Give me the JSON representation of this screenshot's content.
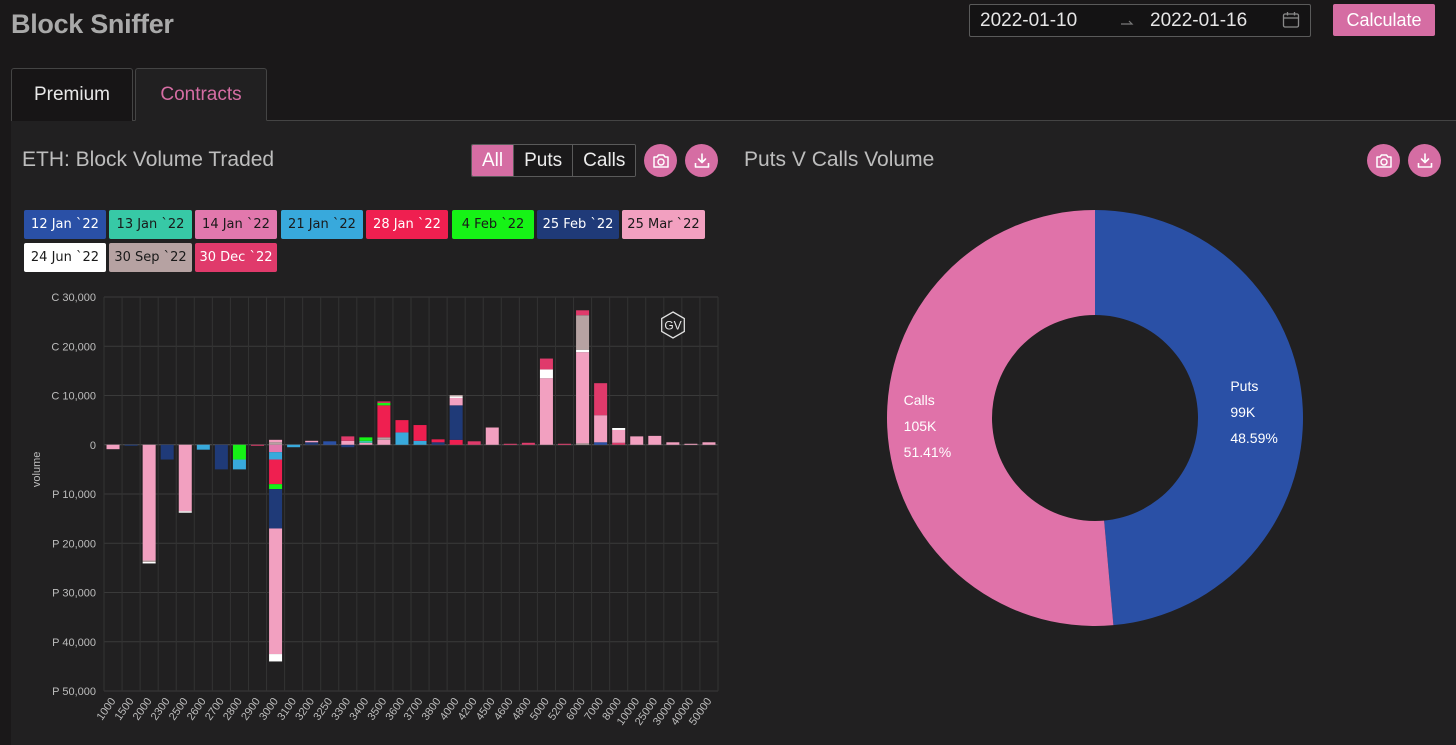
{
  "app": {
    "title": "Block Sniffer"
  },
  "header": {
    "date_start": "2022-01-10",
    "date_end": "2022-01-16",
    "calculate_label": "Calculate"
  },
  "tabs": [
    {
      "label": "Premium",
      "active": false
    },
    {
      "label": "Contracts",
      "active": true
    }
  ],
  "left_panel": {
    "title": "ETH: Block Volume Traded",
    "filters": [
      {
        "label": "All",
        "active": true
      },
      {
        "label": "Puts",
        "active": false
      },
      {
        "label": "Calls",
        "active": false
      }
    ],
    "icons": [
      "camera-icon",
      "download-icon"
    ],
    "watermark": "GV",
    "expiries": [
      {
        "label": "12 Jan `22",
        "color": "#2a50a6",
        "text": "#ffffff"
      },
      {
        "label": "13 Jan `22",
        "color": "#37c9a6",
        "text": "#1a1a1a"
      },
      {
        "label": "14 Jan `22",
        "color": "#e278ad",
        "text": "#1a1a1a"
      },
      {
        "label": "21 Jan `22",
        "color": "#38a9dc",
        "text": "#1a1a1a"
      },
      {
        "label": "28 Jan `22",
        "color": "#ef1f50",
        "text": "#ffffff"
      },
      {
        "label": "4 Feb `22",
        "color": "#16f316",
        "text": "#1a1a1a"
      },
      {
        "label": "25 Feb `22",
        "color": "#1f3a78",
        "text": "#ffffff"
      },
      {
        "label": "25 Mar `22",
        "color": "#f2a0c0",
        "text": "#1a1a1a"
      },
      {
        "label": "24 Jun `22",
        "color": "#ffffff",
        "text": "#1a1a1a"
      },
      {
        "label": "30 Sep `22",
        "color": "#b6a2a2",
        "text": "#1a1a1a"
      },
      {
        "label": "30 Dec `22",
        "color": "#e03a6b",
        "text": "#ffffff"
      }
    ]
  },
  "right_panel": {
    "title": "Puts V Calls Volume",
    "icons": [
      "camera-icon",
      "download-icon"
    ]
  },
  "chart_data": [
    {
      "type": "bar",
      "stacked": true,
      "ylabel": "volume",
      "ylim": [
        -50000,
        30000
      ],
      "y_ticks": [
        30000,
        20000,
        10000,
        0,
        -10000,
        -20000,
        -30000,
        -40000,
        -50000
      ],
      "y_tick_labels": [
        "C 30,000",
        "C 20,000",
        "C 10,000",
        "0",
        "P 10,000",
        "P 20,000",
        "P 30,000",
        "P 40,000",
        "P 50,000"
      ],
      "categories": [
        "1000",
        "1500",
        "2000",
        "2300",
        "2500",
        "2600",
        "2700",
        "2800",
        "2900",
        "3000",
        "3100",
        "3200",
        "3250",
        "3300",
        "3400",
        "3500",
        "3600",
        "3700",
        "3800",
        "4000",
        "4200",
        "4500",
        "4600",
        "4800",
        "5000",
        "5200",
        "6000",
        "7000",
        "8000",
        "10000",
        "25000",
        "30000",
        "40000",
        "50000"
      ],
      "series_colors": [
        "#2a50a6",
        "#37c9a6",
        "#e278ad",
        "#38a9dc",
        "#ef1f50",
        "#16f316",
        "#1f3a78",
        "#f2a0c0",
        "#ffffff",
        "#b6a2a2",
        "#e03a6b"
      ],
      "stacks": [
        [
          [
            7,
            -900
          ]
        ],
        [
          [
            6,
            -200
          ]
        ],
        [
          [
            7,
            -23500
          ],
          [
            9,
            -300
          ],
          [
            8,
            -300
          ]
        ],
        [
          [
            6,
            -3000
          ]
        ],
        [
          [
            7,
            -13500
          ],
          [
            8,
            -300
          ]
        ],
        [
          [
            3,
            -1000
          ]
        ],
        [
          [
            6,
            -5000
          ]
        ],
        [
          [
            5,
            -3000
          ],
          [
            3,
            -2000
          ]
        ],
        [
          [
            10,
            -200
          ]
        ],
        [
          [
            9,
            500
          ],
          [
            7,
            500
          ],
          [
            2,
            -1500
          ],
          [
            3,
            -1500
          ],
          [
            4,
            -5000
          ],
          [
            5,
            -1000
          ],
          [
            6,
            -8000
          ],
          [
            7,
            -25500
          ],
          [
            8,
            -1500
          ]
        ],
        [
          [
            3,
            -500
          ]
        ],
        [
          [
            6,
            500
          ],
          [
            7,
            300
          ]
        ],
        [
          [
            0,
            700
          ]
        ],
        [
          [
            6,
            -500
          ],
          [
            7,
            800
          ],
          [
            10,
            900
          ]
        ],
        [
          [
            7,
            400
          ],
          [
            1,
            400
          ],
          [
            5,
            700
          ]
        ],
        [
          [
            7,
            1000
          ],
          [
            9,
            500
          ],
          [
            4,
            6500
          ],
          [
            5,
            500
          ],
          [
            10,
            300
          ]
        ],
        [
          [
            3,
            2500
          ],
          [
            4,
            2500
          ]
        ],
        [
          [
            3,
            800
          ],
          [
            4,
            3200
          ]
        ],
        [
          [
            6,
            500
          ],
          [
            4,
            600
          ]
        ],
        [
          [
            4,
            1000
          ],
          [
            6,
            7000
          ],
          [
            7,
            1500
          ],
          [
            8,
            300
          ],
          [
            9,
            300
          ]
        ],
        [
          [
            10,
            700
          ]
        ],
        [
          [
            7,
            3500
          ]
        ],
        [
          [
            10,
            200
          ]
        ],
        [
          [
            10,
            400
          ]
        ],
        [
          [
            7,
            13500
          ],
          [
            8,
            1800
          ],
          [
            10,
            2200
          ]
        ],
        [
          [
            10,
            200
          ]
        ],
        [
          [
            9,
            300
          ],
          [
            7,
            18500
          ],
          [
            8,
            500
          ],
          [
            9,
            7000
          ],
          [
            10,
            1000
          ]
        ],
        [
          [
            0,
            500
          ],
          [
            7,
            5500
          ],
          [
            10,
            6500
          ]
        ],
        [
          [
            10,
            400
          ],
          [
            7,
            2600
          ],
          [
            8,
            400
          ]
        ],
        [
          [
            7,
            1700
          ]
        ],
        [
          [
            7,
            1800
          ]
        ],
        [
          [
            7,
            500
          ]
        ],
        [
          [
            7,
            200
          ]
        ],
        [
          [
            7,
            500
          ]
        ]
      ]
    },
    {
      "type": "pie",
      "donut": true,
      "slices": [
        {
          "name": "Puts",
          "value_label": "99K",
          "percent_label": "48.59%",
          "percent": 48.59,
          "color": "#2a50a6"
        },
        {
          "name": "Calls",
          "value_label": "105K",
          "percent_label": "51.41%",
          "percent": 51.41,
          "color": "#e072a9"
        }
      ]
    }
  ]
}
